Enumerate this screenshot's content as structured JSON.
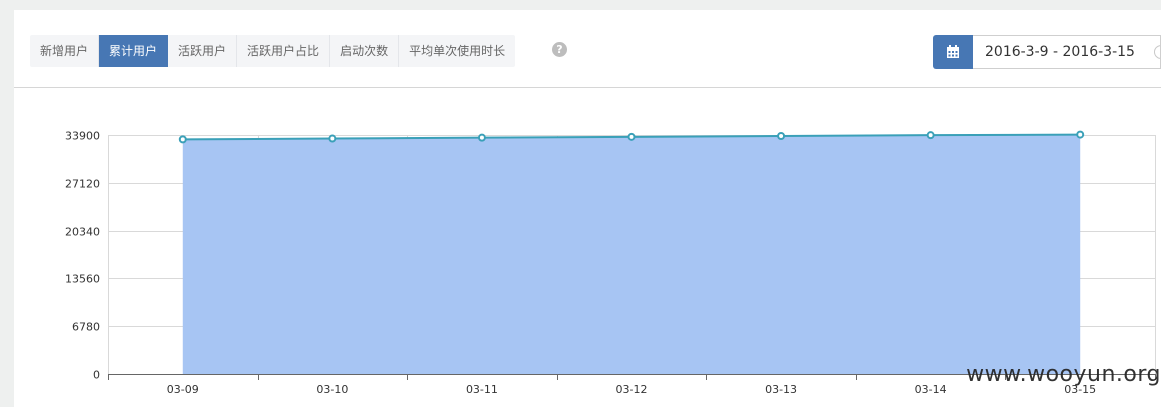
{
  "tabs": [
    {
      "label": "新增用户",
      "active": false
    },
    {
      "label": "累计用户",
      "active": true
    },
    {
      "label": "活跃用户",
      "active": false
    },
    {
      "label": "活跃用户占比",
      "active": false
    },
    {
      "label": "启动次数",
      "active": false
    },
    {
      "label": "平均单次使用时长",
      "active": false
    }
  ],
  "help_icon": "?",
  "date_range": "2016-3-9 - 2016-3-15",
  "watermark": "www.wooyun.org",
  "colors": {
    "accent": "#4777b4",
    "area_fill": "#a7c5f3",
    "line": "#3aa0b8"
  },
  "chart_data": {
    "type": "area",
    "categories": [
      "03-09",
      "03-10",
      "03-11",
      "03-12",
      "03-13",
      "03-14",
      "03-15"
    ],
    "series": [
      {
        "name": "累计用户",
        "values": [
          33280,
          33400,
          33520,
          33640,
          33760,
          33880,
          33960
        ]
      }
    ],
    "yticks": [
      0,
      6780,
      13560,
      20340,
      27120,
      33900
    ],
    "ylim": [
      0,
      33900
    ],
    "grid": true,
    "title": "",
    "xlabel": "",
    "ylabel": ""
  }
}
